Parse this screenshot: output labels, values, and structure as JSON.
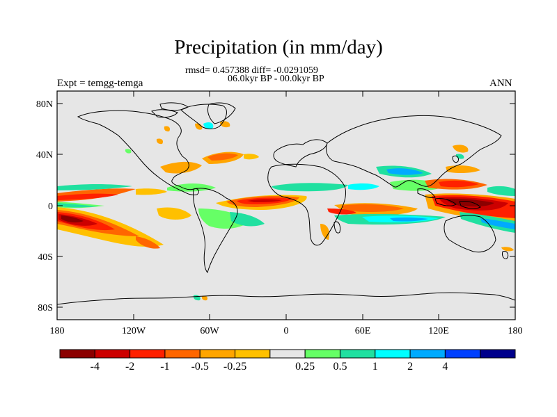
{
  "title": "Precipitation (in mm/day)",
  "stats_line1": "rmsd= 0.457388 diff= -0.0291059",
  "stats_line2": "06.0kyr BP - 00.0kyr BP",
  "left_label": "Expt = temgg-temga",
  "right_label": "ANN",
  "y_ticks": [
    "80N",
    "40N",
    "0",
    "40S",
    "80S"
  ],
  "x_ticks": [
    "180",
    "120W",
    "60W",
    "0",
    "60E",
    "120E",
    "180"
  ],
  "colorbar": {
    "colors": [
      "#8b0000",
      "#cc0000",
      "#ff2000",
      "#ff6600",
      "#ffa500",
      "#ffc000",
      "#e6e6e6",
      "#66ff66",
      "#20e0a0",
      "#00ffff",
      "#00aaff",
      "#0040ff",
      "#00008b"
    ],
    "labels": [
      "-4",
      "-2",
      "-1",
      "-0.5",
      "-0.25",
      "0.25",
      "0.5",
      "1",
      "2",
      "4"
    ]
  },
  "colors": {
    "background": "#e6e6e6",
    "coast": "#000000"
  }
}
